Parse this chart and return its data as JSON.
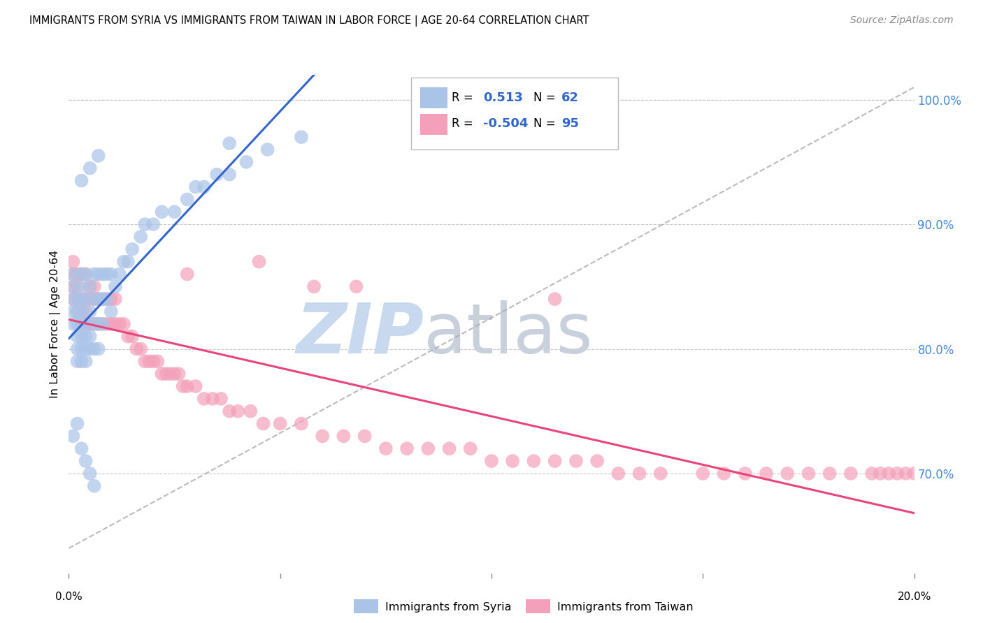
{
  "title": "IMMIGRANTS FROM SYRIA VS IMMIGRANTS FROM TAIWAN IN LABOR FORCE | AGE 20-64 CORRELATION CHART",
  "source": "Source: ZipAtlas.com",
  "ylabel": "In Labor Force | Age 20-64",
  "xlim": [
    0.0,
    0.2
  ],
  "ylim": [
    0.62,
    1.02
  ],
  "yticks_right": [
    0.7,
    0.8,
    0.9,
    1.0
  ],
  "ytick_labels_right": [
    "70.0%",
    "80.0%",
    "90.0%",
    "100.0%"
  ],
  "legend_r_syria": "0.513",
  "legend_n_syria": "62",
  "legend_r_taiwan": "-0.504",
  "legend_n_taiwan": "95",
  "syria_color": "#aac4e8",
  "taiwan_color": "#f4a0ba",
  "syria_line_color": "#3366cc",
  "taiwan_line_color": "#e8457a",
  "diag_line_color": "#aaaaaa",
  "background_color": "#ffffff",
  "grid_color": "#bbbbbb",
  "watermark_zip": "ZIP",
  "watermark_atlas": "atlas",
  "watermark_color": "#c8d8ee",
  "syria_x": [
    0.001,
    0.001,
    0.001,
    0.001,
    0.001,
    0.002,
    0.002,
    0.002,
    0.002,
    0.002,
    0.002,
    0.003,
    0.003,
    0.003,
    0.003,
    0.003,
    0.003,
    0.003,
    0.003,
    0.004,
    0.004,
    0.004,
    0.004,
    0.004,
    0.004,
    0.005,
    0.005,
    0.005,
    0.005,
    0.006,
    0.006,
    0.006,
    0.006,
    0.007,
    0.007,
    0.007,
    0.007,
    0.008,
    0.008,
    0.008,
    0.009,
    0.009,
    0.01,
    0.01,
    0.011,
    0.012,
    0.013,
    0.014,
    0.015,
    0.017,
    0.018,
    0.02,
    0.022,
    0.025,
    0.028,
    0.03,
    0.032,
    0.035,
    0.038,
    0.042,
    0.047,
    0.055
  ],
  "syria_y": [
    0.82,
    0.83,
    0.84,
    0.85,
    0.86,
    0.79,
    0.8,
    0.81,
    0.82,
    0.83,
    0.84,
    0.79,
    0.8,
    0.81,
    0.82,
    0.83,
    0.84,
    0.85,
    0.86,
    0.79,
    0.8,
    0.81,
    0.82,
    0.84,
    0.86,
    0.8,
    0.81,
    0.83,
    0.85,
    0.8,
    0.82,
    0.84,
    0.86,
    0.8,
    0.82,
    0.84,
    0.86,
    0.82,
    0.84,
    0.86,
    0.84,
    0.86,
    0.83,
    0.86,
    0.85,
    0.86,
    0.87,
    0.87,
    0.88,
    0.89,
    0.9,
    0.9,
    0.91,
    0.91,
    0.92,
    0.93,
    0.93,
    0.94,
    0.94,
    0.95,
    0.96,
    0.97
  ],
  "syria_outliers_x": [
    0.003,
    0.005,
    0.007,
    0.038,
    0.001,
    0.002,
    0.003,
    0.004,
    0.005,
    0.006
  ],
  "syria_outliers_y": [
    0.935,
    0.945,
    0.955,
    0.965,
    0.73,
    0.74,
    0.72,
    0.71,
    0.7,
    0.69
  ],
  "taiwan_x": [
    0.001,
    0.001,
    0.001,
    0.001,
    0.002,
    0.002,
    0.002,
    0.002,
    0.003,
    0.003,
    0.003,
    0.003,
    0.004,
    0.004,
    0.004,
    0.004,
    0.005,
    0.005,
    0.005,
    0.006,
    0.006,
    0.006,
    0.007,
    0.007,
    0.008,
    0.008,
    0.009,
    0.009,
    0.01,
    0.01,
    0.011,
    0.011,
    0.012,
    0.013,
    0.014,
    0.015,
    0.016,
    0.017,
    0.018,
    0.019,
    0.02,
    0.021,
    0.022,
    0.023,
    0.024,
    0.025,
    0.026,
    0.027,
    0.028,
    0.03,
    0.032,
    0.034,
    0.036,
    0.038,
    0.04,
    0.043,
    0.046,
    0.05,
    0.055,
    0.06,
    0.065,
    0.07,
    0.075,
    0.08,
    0.085,
    0.09,
    0.095,
    0.1,
    0.105,
    0.11,
    0.115,
    0.12,
    0.125,
    0.13,
    0.135,
    0.14,
    0.15,
    0.155,
    0.16,
    0.165,
    0.17,
    0.175,
    0.18,
    0.185,
    0.19,
    0.192,
    0.194,
    0.196,
    0.198,
    0.2,
    0.028,
    0.045,
    0.058,
    0.068,
    0.115
  ],
  "taiwan_y": [
    0.84,
    0.85,
    0.86,
    0.87,
    0.83,
    0.84,
    0.85,
    0.86,
    0.82,
    0.83,
    0.84,
    0.86,
    0.82,
    0.83,
    0.84,
    0.86,
    0.82,
    0.84,
    0.85,
    0.82,
    0.84,
    0.85,
    0.82,
    0.84,
    0.82,
    0.84,
    0.82,
    0.84,
    0.82,
    0.84,
    0.82,
    0.84,
    0.82,
    0.82,
    0.81,
    0.81,
    0.8,
    0.8,
    0.79,
    0.79,
    0.79,
    0.79,
    0.78,
    0.78,
    0.78,
    0.78,
    0.78,
    0.77,
    0.77,
    0.77,
    0.76,
    0.76,
    0.76,
    0.75,
    0.75,
    0.75,
    0.74,
    0.74,
    0.74,
    0.73,
    0.73,
    0.73,
    0.72,
    0.72,
    0.72,
    0.72,
    0.72,
    0.71,
    0.71,
    0.71,
    0.71,
    0.71,
    0.71,
    0.7,
    0.7,
    0.7,
    0.7,
    0.7,
    0.7,
    0.7,
    0.7,
    0.7,
    0.7,
    0.7,
    0.7,
    0.7,
    0.7,
    0.7,
    0.7,
    0.7,
    0.86,
    0.87,
    0.85,
    0.85,
    0.84
  ]
}
